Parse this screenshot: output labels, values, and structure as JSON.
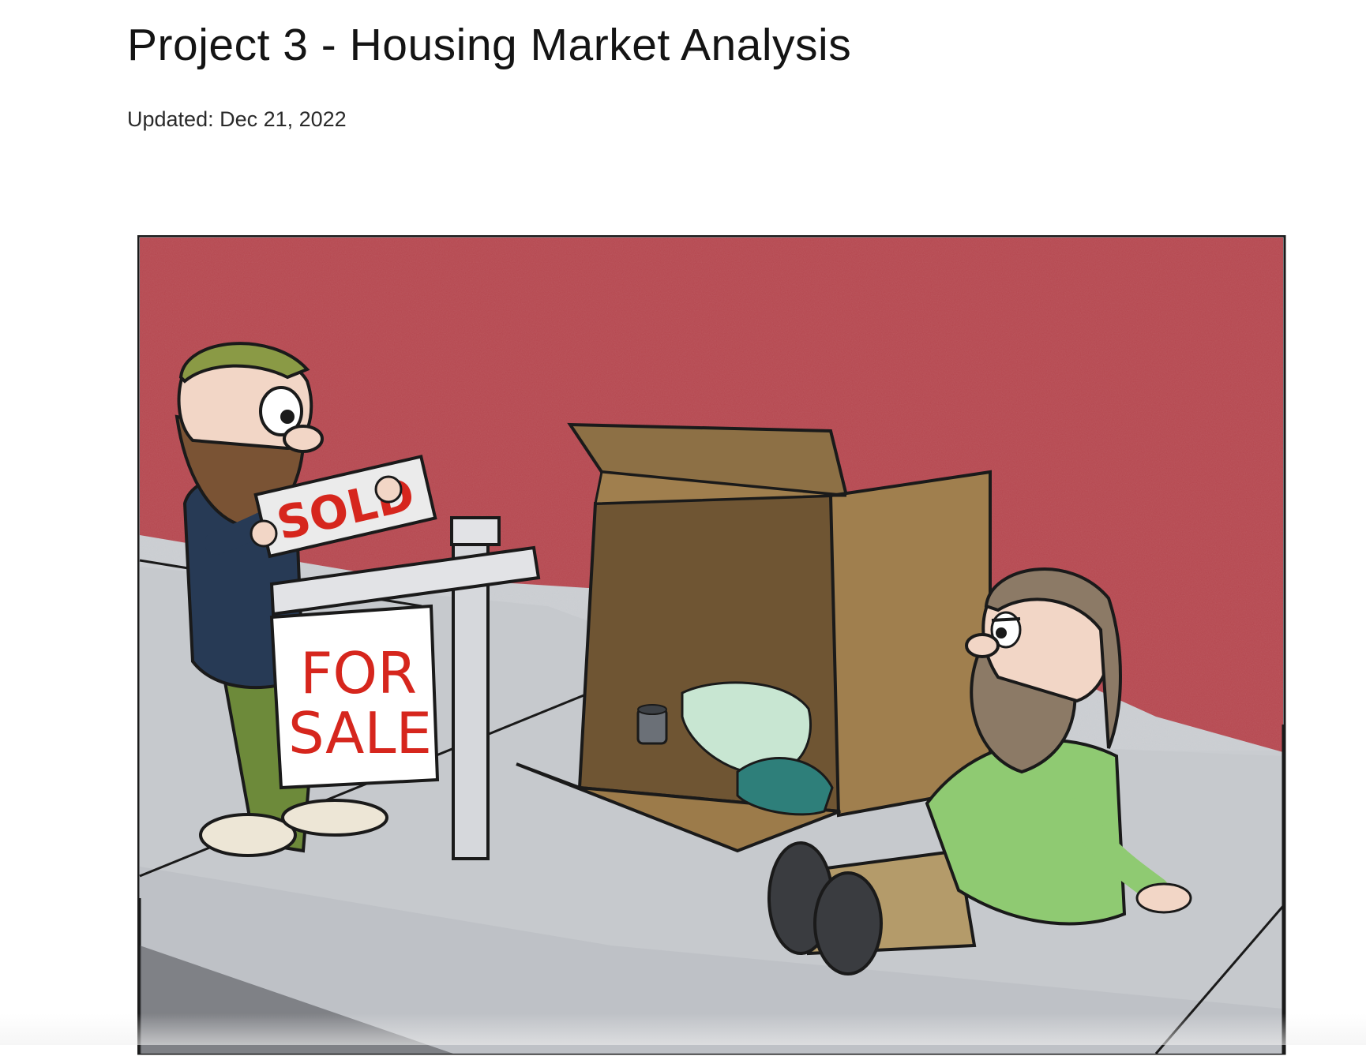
{
  "post": {
    "title": "Project 3 - Housing Market Analysis",
    "updated": "Updated: Dec 21, 2022"
  },
  "cartoon": {
    "sold_sign_text": "SOLD",
    "for_sale_line1": "FOR",
    "for_sale_line2": "SALE"
  },
  "colors": {
    "wall": "#b5474f",
    "sidewalk": "#c9ccd0",
    "box": "#a07f4e",
    "sign_text": "#d6261d"
  }
}
